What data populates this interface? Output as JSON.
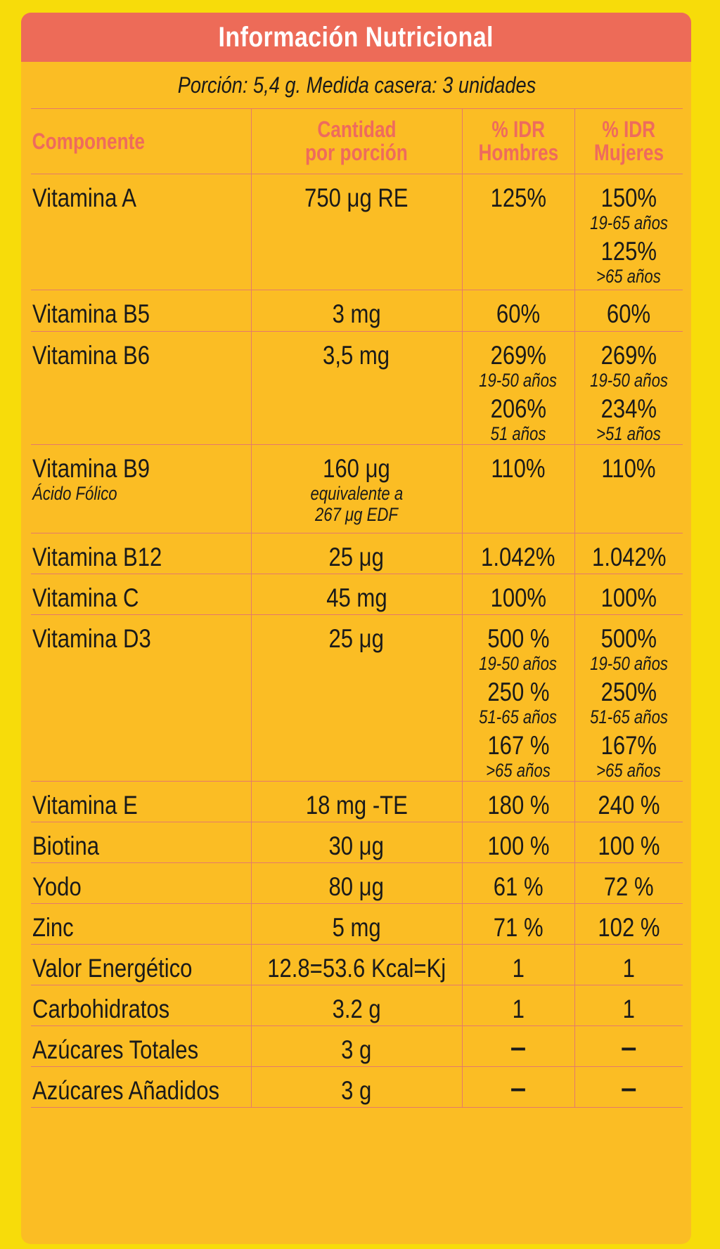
{
  "title": "Información Nutricional",
  "portion": "Porción: 5,4 g. Medida casera: 3 unidades",
  "headers": {
    "component": "Componente",
    "amount_line1": "Cantidad",
    "amount_line2": "por porción",
    "idr_men_line1": "% IDR",
    "idr_men_line2": "Hombres",
    "idr_women_line1": "% IDR",
    "idr_women_line2": "Mujeres"
  },
  "rows": [
    {
      "name": "Vitamina A",
      "amount": "750 μg RE",
      "men": [
        {
          "value": "125%",
          "note": ""
        }
      ],
      "women": [
        {
          "value": "150%",
          "note": "19-65 años"
        },
        {
          "value": "125%",
          "note": ">65 años"
        }
      ]
    },
    {
      "name": "Vitamina B5",
      "amount": "3 mg",
      "men": [
        {
          "value": "60%",
          "note": ""
        }
      ],
      "women": [
        {
          "value": "60%",
          "note": ""
        }
      ]
    },
    {
      "name": "Vitamina B6",
      "amount": "3,5 mg",
      "men": [
        {
          "value": "269%",
          "note": "19-50 años"
        },
        {
          "value": "206%",
          "note": "51 años"
        }
      ],
      "women": [
        {
          "value": "269%",
          "note": "19-50 años"
        },
        {
          "value": "234%",
          "note": ">51 años"
        }
      ]
    },
    {
      "name": "Vitamina B9",
      "name_note": "Ácido Fólico",
      "amount": "160 μg",
      "amount_note_1": "equivalente a",
      "amount_note_2": "267 μg EDF",
      "men": [
        {
          "value": "110%",
          "note": ""
        }
      ],
      "women": [
        {
          "value": "110%",
          "note": ""
        }
      ]
    },
    {
      "name": "Vitamina B12",
      "amount": "25 μg",
      "men": [
        {
          "value": "1.042%",
          "note": ""
        }
      ],
      "women": [
        {
          "value": "1.042%",
          "note": ""
        }
      ]
    },
    {
      "name": "Vitamina C",
      "amount": "45 mg",
      "men": [
        {
          "value": "100%",
          "note": ""
        }
      ],
      "women": [
        {
          "value": "100%",
          "note": ""
        }
      ]
    },
    {
      "name": "Vitamina D3",
      "amount": "25 μg",
      "men": [
        {
          "value": "500 %",
          "note": "19-50 años"
        },
        {
          "value": "250 %",
          "note": "51-65 años"
        },
        {
          "value": "167 %",
          "note": ">65 años"
        }
      ],
      "women": [
        {
          "value": "500%",
          "note": "19-50 años"
        },
        {
          "value": "250%",
          "note": "51-65 años"
        },
        {
          "value": "167%",
          "note": ">65 años"
        }
      ]
    },
    {
      "name": "Vitamina E",
      "amount": "18 mg -TE",
      "men": [
        {
          "value": "180 %",
          "note": ""
        }
      ],
      "women": [
        {
          "value": "240 %",
          "note": ""
        }
      ]
    },
    {
      "name": "Biotina",
      "amount": "30 μg",
      "men": [
        {
          "value": "100 %",
          "note": ""
        }
      ],
      "women": [
        {
          "value": "100 %",
          "note": ""
        }
      ]
    },
    {
      "name": "Yodo",
      "amount": "80 μg",
      "men": [
        {
          "value": "61 %",
          "note": ""
        }
      ],
      "women": [
        {
          "value": "72 %",
          "note": ""
        }
      ]
    },
    {
      "name": "Zinc",
      "amount": "5 mg",
      "men": [
        {
          "value": "71 %",
          "note": ""
        }
      ],
      "women": [
        {
          "value": "102 %",
          "note": ""
        }
      ]
    },
    {
      "name": "Valor Energético",
      "amount": "12.8=53.6 Kcal=Kj",
      "men": [
        {
          "value": "1",
          "note": ""
        }
      ],
      "women": [
        {
          "value": "1",
          "note": ""
        }
      ]
    },
    {
      "name": "Carbohidratos",
      "amount": "3.2 g",
      "men": [
        {
          "value": "1",
          "note": ""
        }
      ],
      "women": [
        {
          "value": "1",
          "note": ""
        }
      ]
    },
    {
      "name": "Azúcares Totales",
      "amount": "3 g",
      "men": [
        {
          "value": "–",
          "note": ""
        }
      ],
      "women": [
        {
          "value": "–",
          "note": ""
        }
      ]
    },
    {
      "name": "Azúcares Añadidos",
      "amount": "3 g",
      "men": [
        {
          "value": "–",
          "note": ""
        }
      ],
      "women": [
        {
          "value": "–",
          "note": ""
        }
      ]
    }
  ],
  "colors": {
    "background": "#f7dc0a",
    "panel": "#fbbd24",
    "title_bar": "#ed6b58",
    "header_text": "#ee6b5d",
    "grid_lines": "#e5796a"
  }
}
